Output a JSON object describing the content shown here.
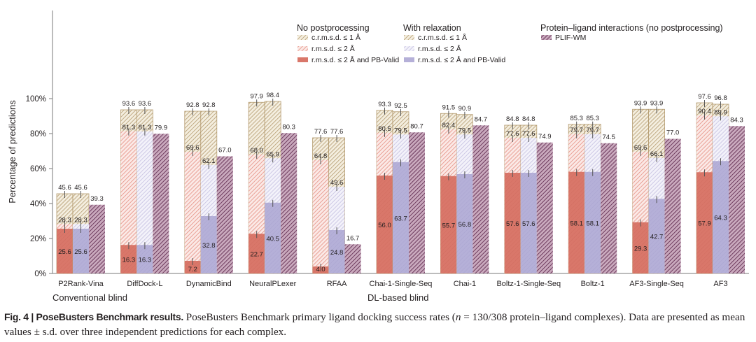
{
  "chart_data": {
    "type": "bar",
    "subtype": "grouped-overlapping-stacked",
    "ylabel": "Percentage of predictions",
    "ylim": [
      0,
      100
    ],
    "yticks": [
      0,
      20,
      40,
      60,
      80,
      100
    ],
    "ytick_labels": [
      "0%",
      "20%",
      "40%",
      "60%",
      "80%",
      "100%"
    ],
    "grid": false,
    "categories": [
      "P2Rank-Vina",
      "DiffDock-L",
      "DynamicBind",
      "NeuralPLexer",
      "RFAA",
      "Chai-1-Single-Seq",
      "Chai-1",
      "Boltz-1-Single-Seq",
      "Boltz-1",
      "AF3-Single-Seq",
      "AF3"
    ],
    "category_groups": [
      {
        "label": "Conventional blind",
        "members": [
          "P2Rank-Vina"
        ]
      },
      {
        "label": "DL-based blind",
        "members": [
          "DiffDock-L",
          "DynamicBind",
          "NeuralPLexer",
          "RFAA",
          "Chai-1-Single-Seq",
          "Chai-1",
          "Boltz-1-Single-Seq",
          "Boltz-1",
          "AF3-Single-Seq",
          "AF3"
        ]
      }
    ],
    "legend": {
      "placement": "top-right",
      "groups": [
        {
          "title": "No postprocessing",
          "entries": [
            {
              "label": "c.r.m.s.d. ≤ 1 Å",
              "style": "hatch-tan"
            },
            {
              "label": "r.m.s.d. ≤ 2 Å",
              "style": "hatch-red"
            },
            {
              "label": "r.m.s.d. ≤ 2 Å and PB-Valid",
              "style": "solid-red"
            }
          ]
        },
        {
          "title": "With relaxation",
          "entries": [
            {
              "label": "c.r.m.s.d. ≤ 1 Å",
              "style": "hatch-tan"
            },
            {
              "label": "r.m.s.d. ≤ 2 Å",
              "style": "hatch-lavender"
            },
            {
              "label": "r.m.s.d. ≤ 2 Å and PB-Valid",
              "style": "solid-lavender"
            }
          ]
        },
        {
          "title": "Protein–ligand interactions (no postprocessing)",
          "entries": [
            {
              "label": "PLIF-WM",
              "style": "hatch-purple"
            }
          ]
        }
      ]
    },
    "series": [
      {
        "name": "No postprocessing: c.r.m.s.d. ≤ 1 Å",
        "values": [
          45.6,
          93.6,
          92.8,
          97.9,
          77.6,
          93.3,
          91.5,
          84.8,
          85.3,
          93.9,
          97.6
        ]
      },
      {
        "name": "No postprocessing: r.m.s.d. ≤ 2 Å",
        "values": [
          28.3,
          81.3,
          69.6,
          68.0,
          64.8,
          80.5,
          82.4,
          77.6,
          79.7,
          69.6,
          90.4
        ]
      },
      {
        "name": "No postprocessing: r.m.s.d. ≤ 2 Å and PB-Valid",
        "values": [
          25.6,
          16.3,
          7.2,
          22.7,
          4.0,
          56.0,
          55.7,
          57.6,
          58.1,
          29.3,
          57.9
        ]
      },
      {
        "name": "With relaxation: c.r.m.s.d. ≤ 1 Å",
        "values": [
          45.6,
          93.6,
          92.8,
          98.4,
          77.6,
          92.5,
          90.9,
          84.8,
          85.3,
          93.9,
          96.8
        ]
      },
      {
        "name": "With relaxation: r.m.s.d. ≤ 2 Å",
        "values": [
          28.3,
          81.3,
          62.1,
          65.9,
          49.6,
          79.5,
          79.5,
          77.6,
          79.7,
          66.1,
          89.9
        ]
      },
      {
        "name": "With relaxation: r.m.s.d. ≤ 2 Å and PB-Valid",
        "values": [
          25.6,
          16.3,
          32.8,
          40.5,
          24.8,
          63.7,
          56.8,
          57.6,
          58.1,
          42.7,
          64.3
        ]
      },
      {
        "name": "PLIF-WM",
        "values": [
          39.3,
          79.9,
          67.0,
          80.3,
          16.7,
          80.7,
          84.7,
          74.9,
          74.5,
          77.0,
          84.3
        ]
      }
    ],
    "colors": {
      "solid_red": "#d9776a",
      "hatch_red": "#e8968a",
      "solid_lavender": "#b5b0d8",
      "hatch_lavender": "#c9c5e3",
      "hatch_tan": "#b39a6e",
      "tan_bg": "#f3ecdc",
      "hatch_purple": "#7d4a6d",
      "axis": "#7a7a7a",
      "errorbar": "#555555"
    }
  },
  "caption": {
    "bold": "Fig. 4 | PoseBusters Benchmark results.",
    "text_before_n": " PoseBusters Benchmark primary ligand docking success rates (",
    "italic_n": "n",
    "text_after_n": " = 130/308 protein–ligand complexes). Data are presented as mean values ± s.d. over three independent predictions for each complex."
  }
}
